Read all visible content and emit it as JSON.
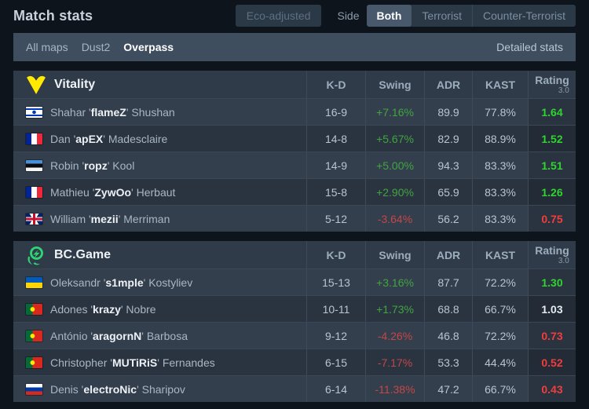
{
  "header": {
    "title": "Match stats",
    "eco_button": "Eco-adjusted",
    "side_label": "Side",
    "side_options": [
      "Both",
      "Terrorist",
      "Counter-Terrorist"
    ],
    "side_selected": "Both"
  },
  "nav": {
    "maps": [
      "All maps",
      "Dust2",
      "Overpass"
    ],
    "selected_map": "Overpass",
    "detailed_stats_label": "Detailed stats"
  },
  "table": {
    "columns": [
      "K-D",
      "Swing",
      "ADR",
      "KAST"
    ],
    "rating_column": {
      "label": "Rating",
      "sub": "3.0"
    }
  },
  "teams": [
    {
      "name": "Vitality",
      "logo": "vitality-logo",
      "players": [
        {
          "first": "Shahar",
          "nick": "flameZ",
          "last": "Shushan",
          "country": "israel",
          "kd": "16-9",
          "swing": "+7.16%",
          "adr": "89.9",
          "kast": "77.8%",
          "rating": "1.64"
        },
        {
          "first": "Dan",
          "nick": "apEX",
          "last": "Madesclaire",
          "country": "france",
          "kd": "14-8",
          "swing": "+5.67%",
          "adr": "82.9",
          "kast": "88.9%",
          "rating": "1.52"
        },
        {
          "first": "Robin",
          "nick": "ropz",
          "last": "Kool",
          "country": "estonia",
          "kd": "14-9",
          "swing": "+5.00%",
          "adr": "94.3",
          "kast": "83.3%",
          "rating": "1.51"
        },
        {
          "first": "Mathieu",
          "nick": "ZywOo",
          "last": "Herbaut",
          "country": "france",
          "kd": "15-8",
          "swing": "+2.90%",
          "adr": "65.9",
          "kast": "83.3%",
          "rating": "1.26"
        },
        {
          "first": "William",
          "nick": "mezii",
          "last": "Merriman",
          "country": "united-kingdom",
          "kd": "5-12",
          "swing": "-3.64%",
          "adr": "56.2",
          "kast": "83.3%",
          "rating": "0.75"
        }
      ]
    },
    {
      "name": "BC.Game",
      "logo": "bcgame-logo",
      "players": [
        {
          "first": "Oleksandr",
          "nick": "s1mple",
          "last": "Kostyliev",
          "country": "ukraine",
          "kd": "15-13",
          "swing": "+3.16%",
          "adr": "87.7",
          "kast": "72.2%",
          "rating": "1.30"
        },
        {
          "first": "Adones",
          "nick": "krazy",
          "last": "Nobre",
          "country": "portugal",
          "kd": "10-11",
          "swing": "+1.73%",
          "adr": "68.8",
          "kast": "66.7%",
          "rating": "1.03"
        },
        {
          "first": "António",
          "nick": "aragornN",
          "last": "Barbosa",
          "country": "portugal",
          "kd": "9-12",
          "swing": "-4.26%",
          "adr": "46.8",
          "kast": "72.2%",
          "rating": "0.73"
        },
        {
          "first": "Christopher",
          "nick": "MUTiRiS",
          "last": "Fernandes",
          "country": "portugal",
          "kd": "6-15",
          "swing": "-7.17%",
          "adr": "53.3",
          "kast": "44.4%",
          "rating": "0.52"
        },
        {
          "first": "Denis",
          "nick": "electroNic",
          "last": "Sharipov",
          "country": "russia",
          "kd": "6-14",
          "swing": "-11.38%",
          "adr": "47.2",
          "kast": "66.7%",
          "rating": "0.43"
        }
      ]
    }
  ],
  "colors": {
    "positive": "#42a440",
    "negative": "#c34747",
    "rating_good": "#30d330",
    "rating_bad": "#f23d3d",
    "accent_nav": "#3f4e5f",
    "vitality_yellow": "#ffe900",
    "bcgame_green": "#2fd573"
  }
}
